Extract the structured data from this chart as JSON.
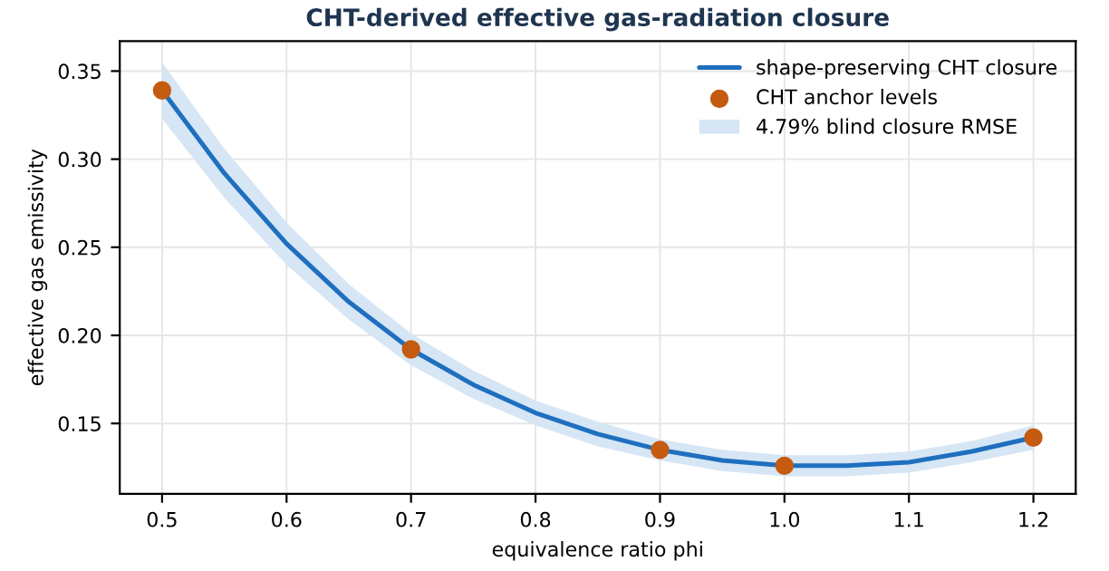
{
  "chart_data": {
    "type": "line",
    "title": "CHT-derived effective gas-radiation closure",
    "xlabel": "equivalence ratio phi",
    "ylabel": "effective gas emissivity",
    "xlim": [
      0.466,
      1.234
    ],
    "ylim": [
      0.11,
      0.367
    ],
    "xticks": [
      0.5,
      0.6,
      0.7,
      0.8,
      0.9,
      {
        "value": 1.0,
        "label": "1.0"
      },
      1.1,
      1.2
    ],
    "yticks": [
      0.15,
      {
        "value": 0.2,
        "label": "0.20"
      },
      0.25,
      {
        "value": 0.3,
        "label": "0.30"
      },
      0.35
    ],
    "grid": true,
    "legend": "top right",
    "annotations": [
      "4.79% blind closure RMSE"
    ],
    "series": [
      {
        "name": "shape-preserving CHT closure",
        "color": "#1f6fbf",
        "x": [
          0.5,
          0.55,
          0.6,
          0.65,
          0.7,
          0.75,
          0.8,
          0.85,
          0.9,
          0.95,
          1.0,
          1.05,
          1.1,
          1.15,
          1.2
        ],
        "values": [
          0.339,
          0.292,
          0.252,
          0.219,
          0.192,
          0.172,
          0.156,
          0.144,
          0.135,
          0.129,
          0.126,
          0.126,
          0.128,
          0.134,
          0.142
        ],
        "lower": [
          0.323,
          0.278,
          0.24,
          0.209,
          0.183,
          0.164,
          0.149,
          0.137,
          0.129,
          0.123,
          0.12,
          0.12,
          0.122,
          0.128,
          0.135
        ],
        "upper": [
          0.355,
          0.306,
          0.264,
          0.229,
          0.201,
          0.18,
          0.163,
          0.151,
          0.141,
          0.135,
          0.132,
          0.132,
          0.134,
          0.14,
          0.149
        ]
      },
      {
        "type": "scatter",
        "name": "CHT anchor levels",
        "color": "#c55a11",
        "marker": "circle",
        "x": [
          0.5,
          0.7,
          0.9,
          1.0,
          1.2
        ],
        "values": [
          0.339,
          0.192,
          0.135,
          0.126,
          0.142
        ]
      }
    ]
  }
}
